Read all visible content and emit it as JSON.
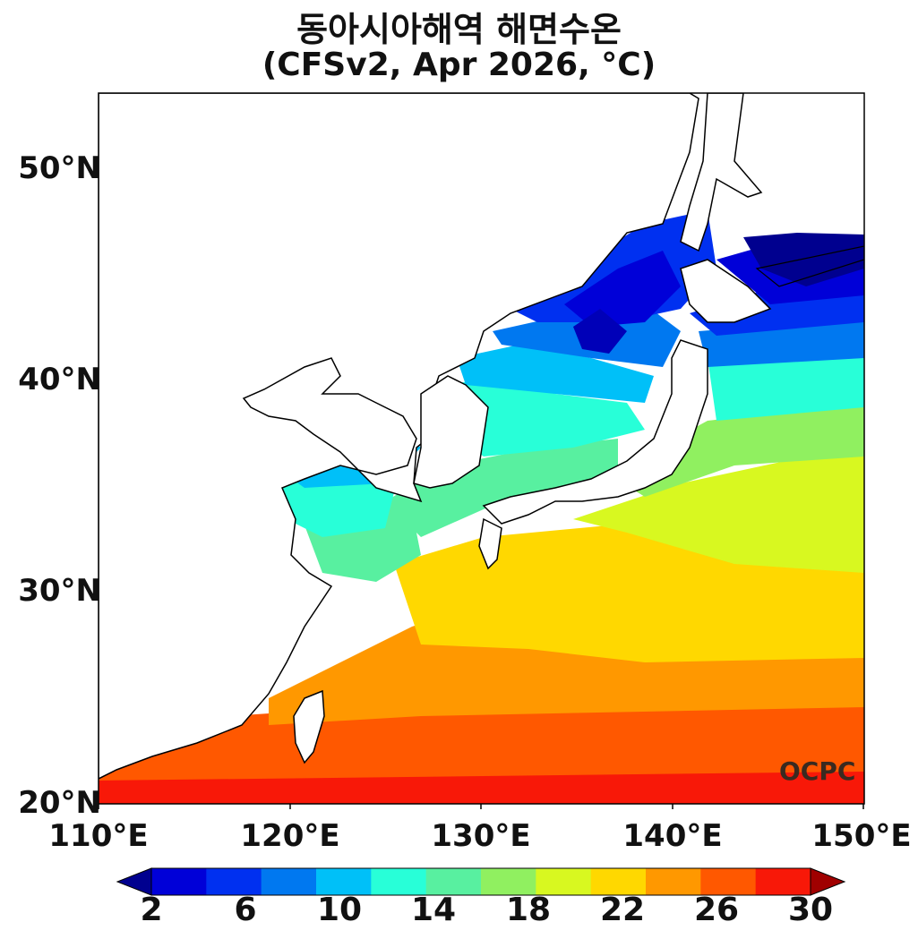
{
  "title": {
    "line1": "동아시아해역 해면수온",
    "line2": "(CFSv2, Apr 2026, °C)"
  },
  "logo": "OCPC",
  "axes": {
    "y_ticks": [
      "50°N",
      "40°N",
      "30°N",
      "20°N"
    ],
    "x_ticks": [
      "110°E",
      "120°E",
      "130°E",
      "140°E",
      "150°E"
    ]
  },
  "colorbar": {
    "ticks": [
      "2",
      "6",
      "10",
      "14",
      "18",
      "22",
      "26",
      "30"
    ],
    "colors": [
      "#00008f",
      "#0000d8",
      "#0030f0",
      "#0078f0",
      "#00c0f8",
      "#28ffd8",
      "#58f0a0",
      "#90f060",
      "#d8f820",
      "#ffd800",
      "#ff9800",
      "#ff5800",
      "#f81808",
      "#a00000"
    ]
  }
}
